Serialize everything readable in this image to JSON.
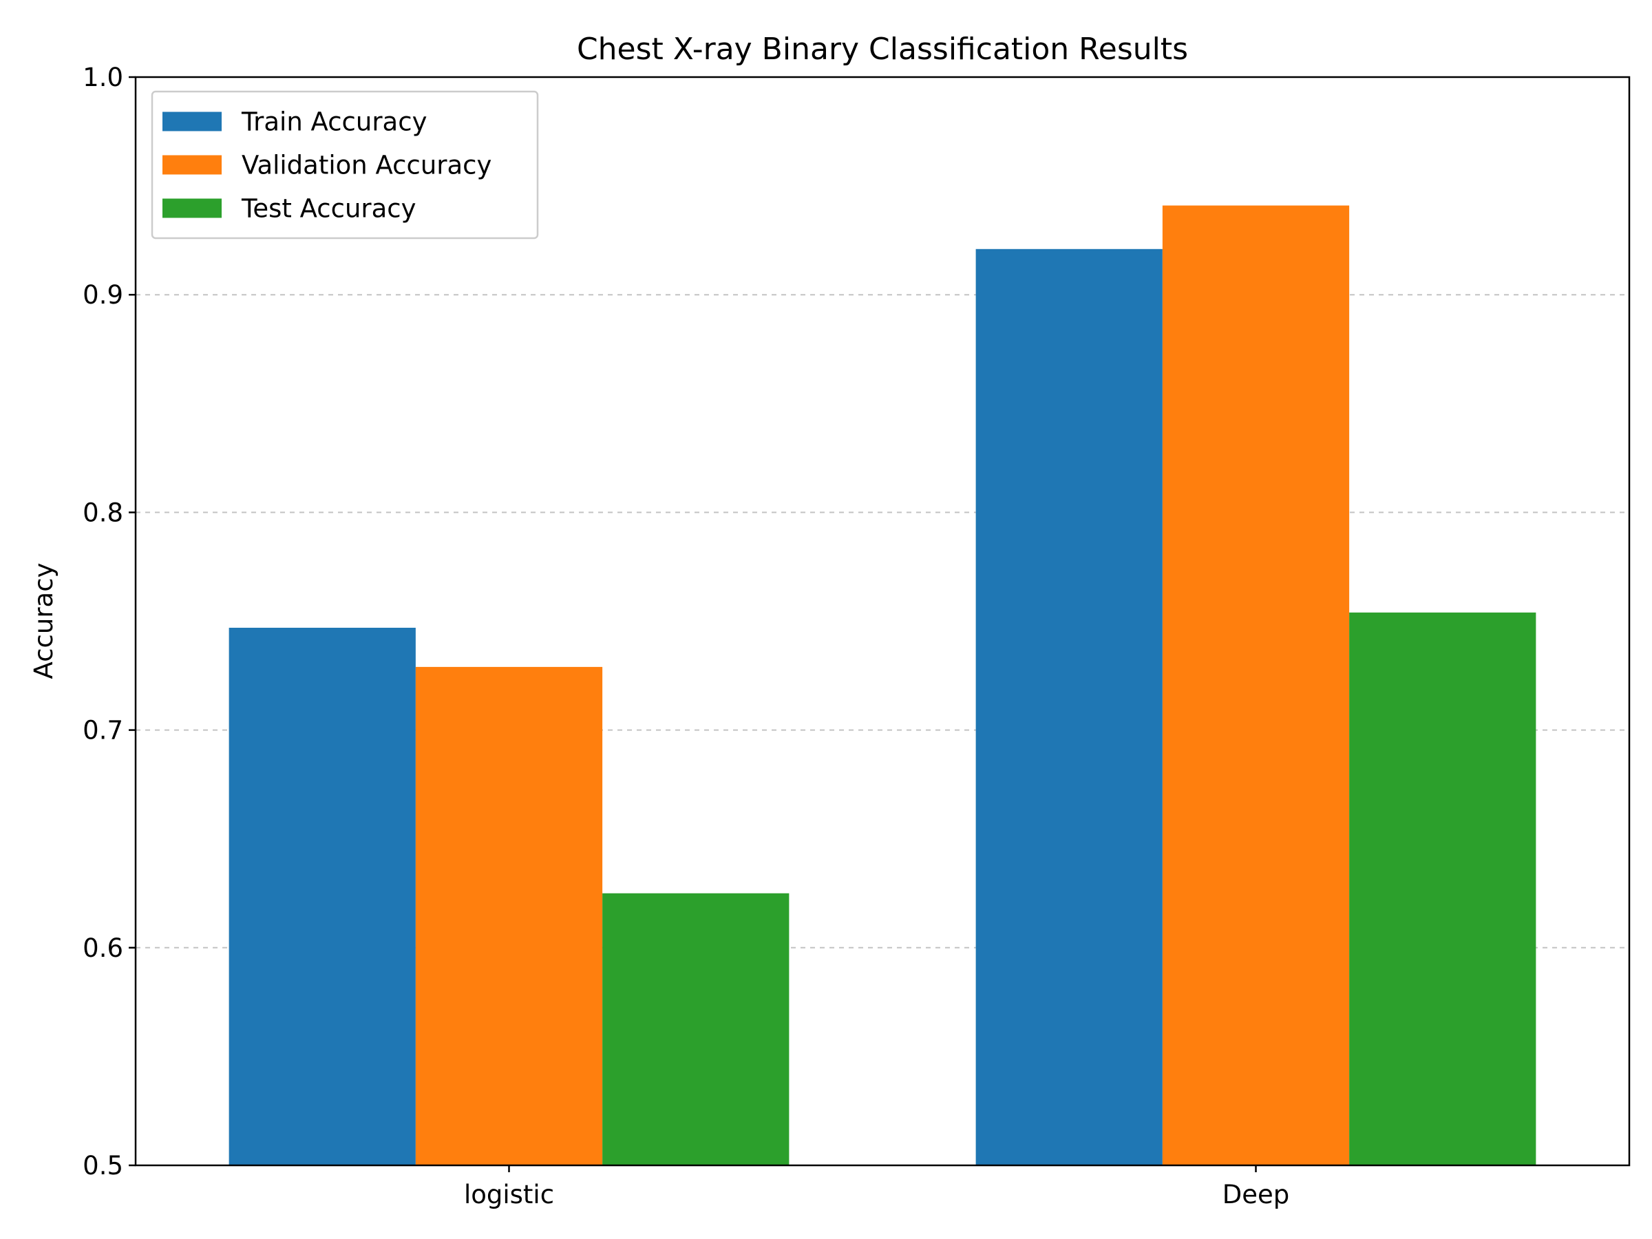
{
  "chart_data": {
    "type": "bar",
    "title": "Chest X-ray Binary Classification Results",
    "xlabel": "",
    "ylabel": "Accuracy",
    "ylim": [
      0.5,
      1.0
    ],
    "yticks": [
      0.5,
      0.6,
      0.7,
      0.8,
      0.9,
      1.0
    ],
    "ytick_labels": [
      "0.5",
      "0.6",
      "0.7",
      "0.8",
      "0.9",
      "1.0"
    ],
    "grid": "y-dashed",
    "legend_position": "upper-left",
    "categories": [
      "logistic",
      "Deep"
    ],
    "series": [
      {
        "name": "Train Accuracy",
        "color": "#1f77b4",
        "values": [
          0.747,
          0.921
        ]
      },
      {
        "name": "Validation Accuracy",
        "color": "#ff7f0e",
        "values": [
          0.729,
          0.941
        ]
      },
      {
        "name": "Test Accuracy",
        "color": "#2ca02c",
        "values": [
          0.625,
          0.754
        ]
      }
    ]
  }
}
